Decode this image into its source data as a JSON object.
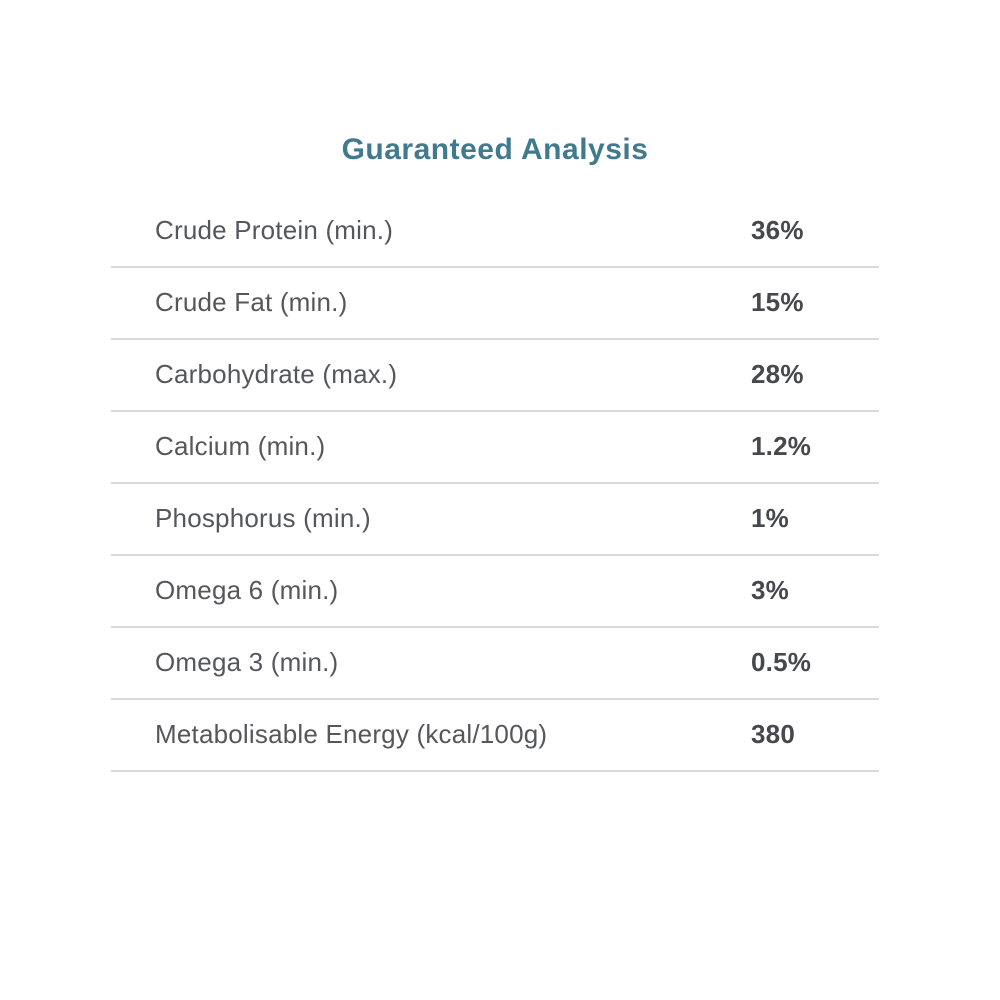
{
  "section": {
    "title": "Guaranteed Analysis"
  },
  "table": {
    "rows": [
      {
        "label": "Crude Protein (min.)",
        "value": "36%"
      },
      {
        "label": "Crude Fat (min.)",
        "value": "15%"
      },
      {
        "label": "Carbohydrate (max.)",
        "value": "28%"
      },
      {
        "label": "Calcium (min.)",
        "value": "1.2%"
      },
      {
        "label": "Phosphorus (min.)",
        "value": "1%"
      },
      {
        "label": "Omega 6 (min.)",
        "value": "3%"
      },
      {
        "label": "Omega 3 (min.)",
        "value": "0.5%"
      },
      {
        "label": "Metabolisable Energy (kcal/100g)",
        "value": "380"
      }
    ]
  },
  "colors": {
    "heading": "#41798e",
    "label_text": "#55575c",
    "value_text": "#46484d",
    "divider": "#d9d9d9",
    "background": "#ffffff"
  }
}
